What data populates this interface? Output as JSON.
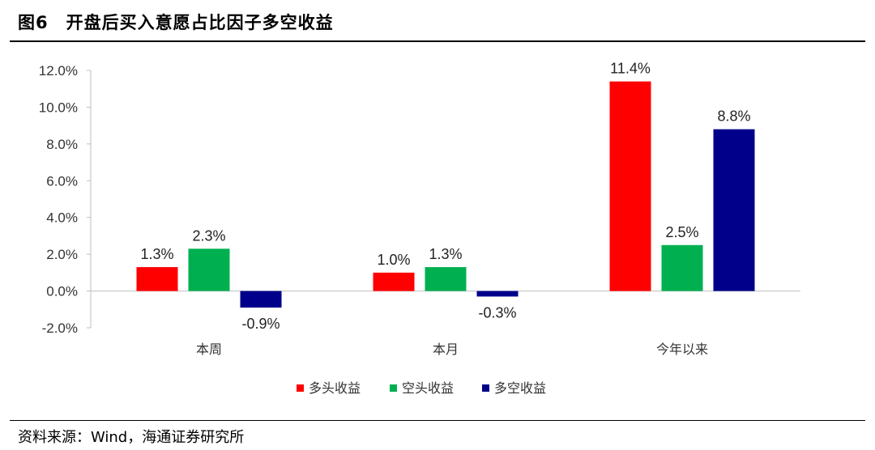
{
  "header": {
    "title": "图6　开盘后买入意愿占比因子多空收益"
  },
  "footer": {
    "source": "资料来源：Wind，海通证券研究所"
  },
  "chart_data": {
    "type": "bar",
    "categories": [
      "本周",
      "本月",
      "今年以来"
    ],
    "series": [
      {
        "name": "多头收益",
        "color": "#ff0000",
        "values": [
          1.3,
          1.0,
          11.4
        ]
      },
      {
        "name": "空头收益",
        "color": "#00b050",
        "values": [
          2.3,
          1.3,
          2.5
        ]
      },
      {
        "name": "多空收益",
        "color": "#00008b",
        "values": [
          -0.9,
          -0.3,
          8.8
        ]
      }
    ],
    "ylim": [
      -2.0,
      12.0
    ],
    "yticks": [
      12.0,
      10.0,
      8.0,
      6.0,
      4.0,
      2.0,
      0.0,
      -2.0
    ],
    "ytick_labels": [
      "12.0%",
      "10.0%",
      "8.0%",
      "6.0%",
      "4.0%",
      "2.0%",
      "0.0%",
      "-2.0%"
    ],
    "data_labels": [
      [
        "1.3%",
        "1.0%",
        "11.4%"
      ],
      [
        "2.3%",
        "1.3%",
        "2.5%"
      ],
      [
        "-0.9%",
        "-0.3%",
        "8.8%"
      ]
    ],
    "legend_position": "bottom",
    "grid": false
  }
}
